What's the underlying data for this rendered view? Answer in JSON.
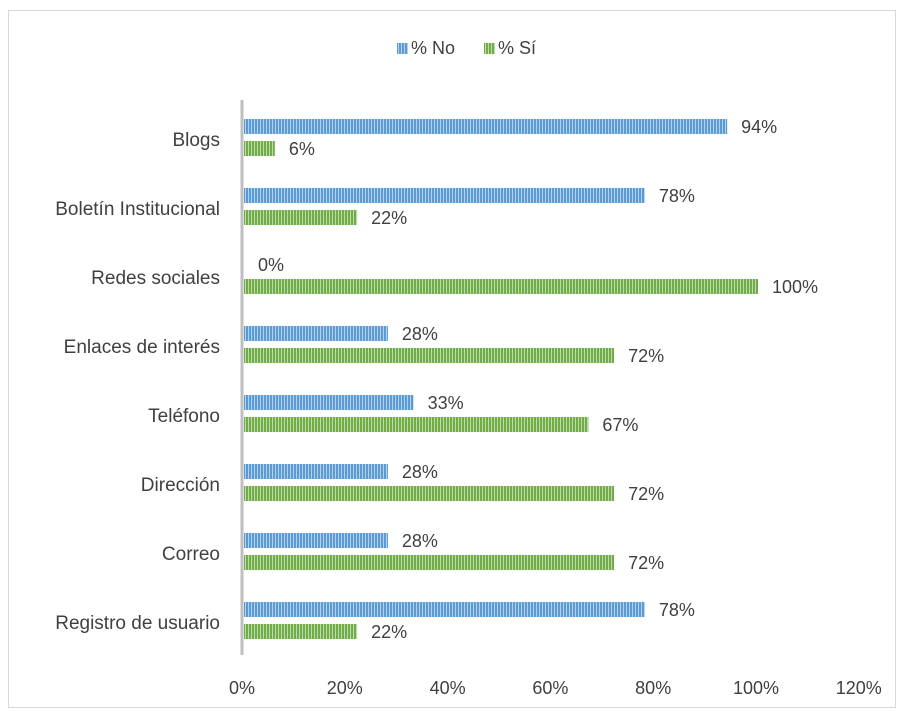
{
  "chart_data": {
    "type": "bar",
    "orientation": "horizontal",
    "categories": [
      "Blogs",
      "Boletín Institucional",
      "Redes sociales",
      "Enlaces de interés",
      "Teléfono",
      "Dirección",
      "Correo",
      "Registro de usuario"
    ],
    "series": [
      {
        "name": "% No",
        "values": [
          94,
          78,
          0,
          28,
          33,
          28,
          28,
          78
        ],
        "color": "#5b9bd5",
        "pattern": "vertical-stripes"
      },
      {
        "name": "% Sí",
        "values": [
          6,
          22,
          100,
          72,
          67,
          72,
          72,
          22
        ],
        "color": "#70ad47",
        "pattern": "vertical-stripes"
      }
    ],
    "data_labels": {
      "% No": [
        "94%",
        "78%",
        "0%",
        "28%",
        "33%",
        "28%",
        "28%",
        "78%"
      ],
      "% Sí": [
        "6%",
        "22%",
        "100%",
        "72%",
        "67%",
        "72%",
        "72%",
        "22%"
      ]
    },
    "x_ticks": [
      "0%",
      "20%",
      "40%",
      "60%",
      "80%",
      "100%",
      "120%"
    ],
    "xlim": [
      0,
      120
    ],
    "grid": false,
    "legend_position": "top",
    "title": "",
    "xlabel": "",
    "ylabel": ""
  }
}
